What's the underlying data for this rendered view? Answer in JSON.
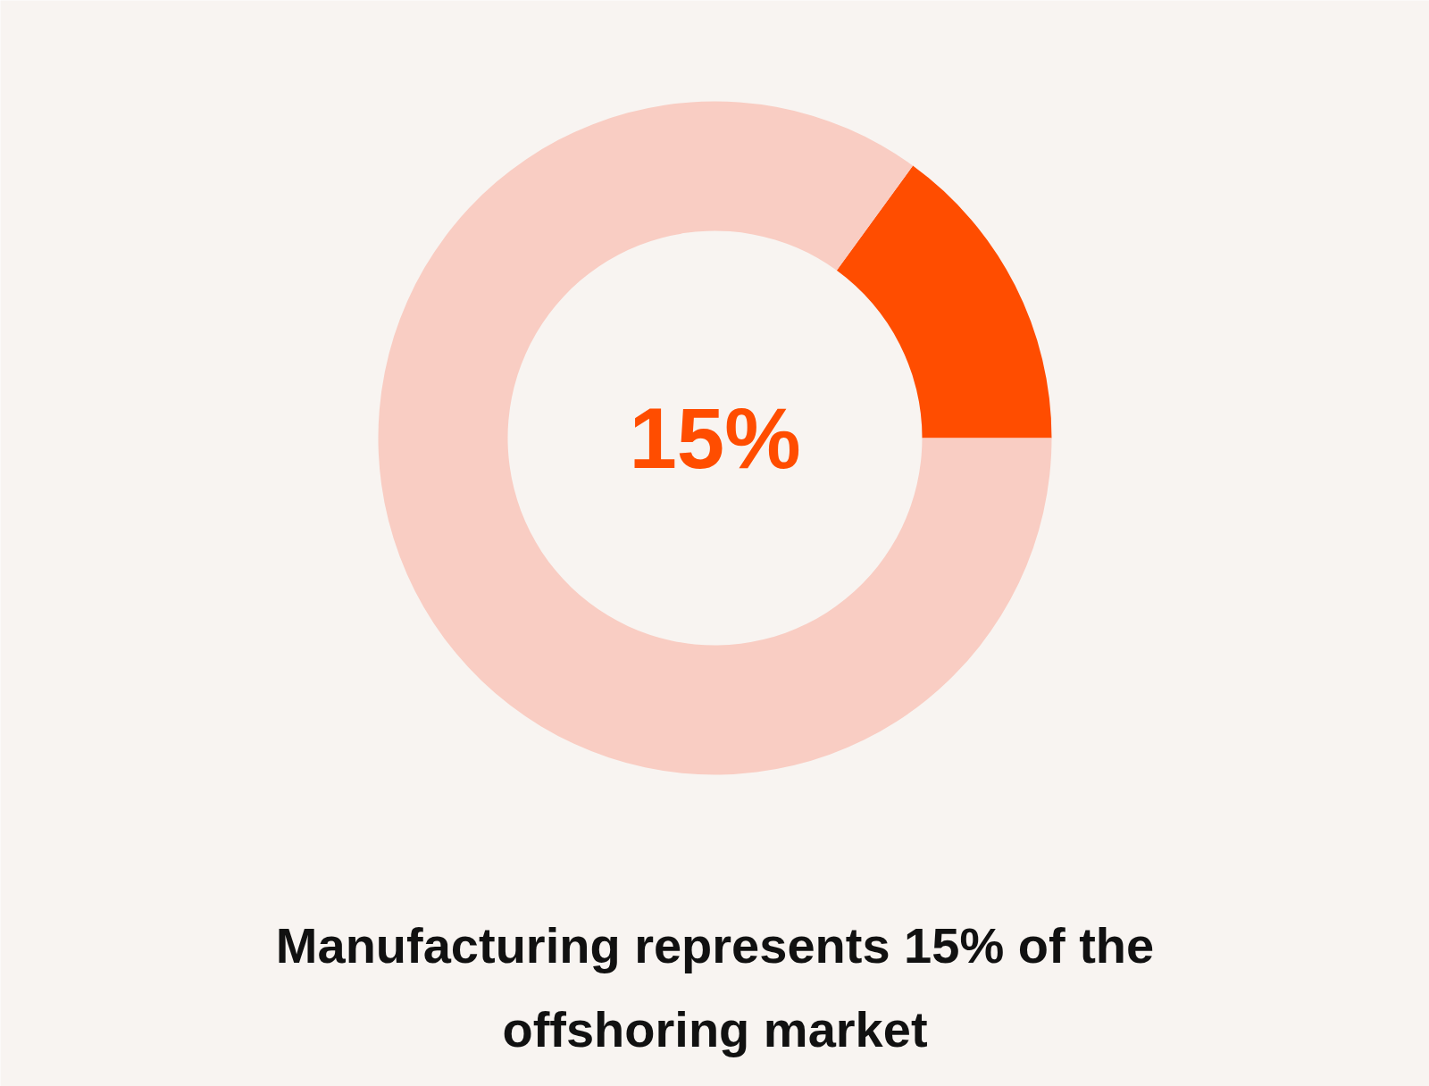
{
  "chart_data": {
    "type": "donut",
    "title": "Manufacturing represents 15% of the offshoring market",
    "categories": [
      null,
      null
    ],
    "values": [
      15,
      85
    ],
    "colors": [
      "#ff4d00",
      "#f9cdc3"
    ],
    "value_labels": [
      "15%",
      null
    ]
  }
}
